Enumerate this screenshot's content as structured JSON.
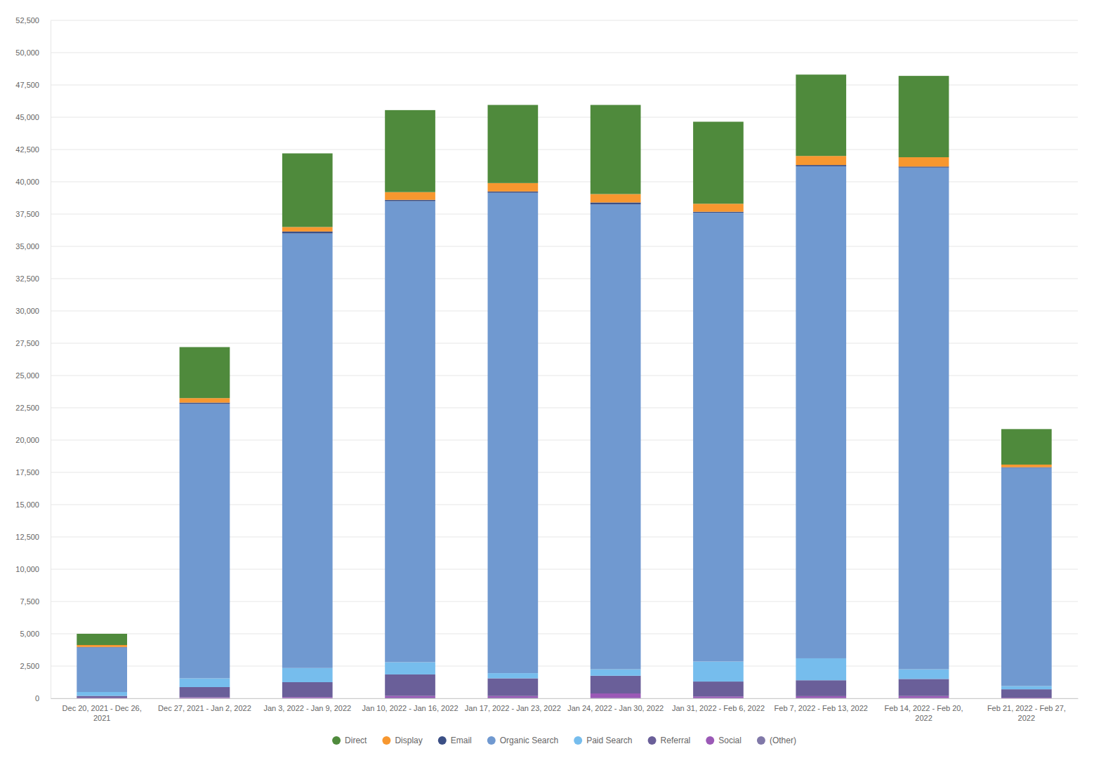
{
  "chart_data": {
    "type": "bar",
    "stacked": true,
    "grid": true,
    "legend": "bottom",
    "categories": [
      "Dec 20, 2021 - Dec 26, 2021",
      "Dec 27, 2021 - Jan 2, 2022",
      "Jan 3, 2022 - Jan 9, 2022",
      "Jan 10, 2022 - Jan 16, 2022",
      "Jan 17, 2022 - Jan 23, 2022",
      "Jan 24, 2022 - Jan 30, 2022",
      "Jan 31, 2022 - Feb 6, 2022",
      "Feb 7, 2022 - Feb 13, 2022",
      "Feb 14, 2022 - Feb 20, 2022",
      "Feb 21, 2022 - Feb 27, 2022"
    ],
    "series": [
      {
        "name": "Direct",
        "color": "#4f8a3c",
        "values": [
          870,
          3950,
          5700,
          6350,
          6050,
          6900,
          6350,
          6300,
          6300,
          2750
        ]
      },
      {
        "name": "Display",
        "color": "#f7972f",
        "values": [
          150,
          350,
          350,
          600,
          650,
          650,
          620,
          700,
          720,
          200
        ]
      },
      {
        "name": "Email",
        "color": "#3b4f85",
        "values": [
          40,
          100,
          150,
          100,
          100,
          150,
          80,
          100,
          80,
          50
        ]
      },
      {
        "name": "Organic Search",
        "color": "#7099d0",
        "values": [
          3450,
          21250,
          33650,
          35700,
          37200,
          36000,
          34750,
          38100,
          38850,
          16900
        ]
      },
      {
        "name": "Paid Search",
        "color": "#76bded",
        "values": [
          300,
          680,
          1100,
          950,
          400,
          500,
          1550,
          1700,
          750,
          250
        ]
      },
      {
        "name": "Referral",
        "color": "#6a5f99",
        "values": [
          150,
          790,
          1150,
          1660,
          1370,
          1370,
          1150,
          1230,
          1320,
          650
        ]
      },
      {
        "name": "Social",
        "color": "#9b59b6",
        "values": [
          30,
          60,
          70,
          150,
          140,
          350,
          120,
          140,
          150,
          40
        ]
      },
      {
        "name": "(Other)",
        "color": "#8078a8",
        "values": [
          10,
          20,
          30,
          40,
          40,
          30,
          30,
          30,
          30,
          10
        ]
      }
    ],
    "ylim": [
      0,
      52500
    ],
    "yticks": [
      0,
      {
        "value": 2500,
        "label": "2,500"
      },
      {
        "value": 5000,
        "label": "5,000"
      },
      {
        "value": 7500,
        "label": "7,500"
      },
      {
        "value": 10000,
        "label": "10,000"
      },
      {
        "value": 12500,
        "label": "12,500"
      },
      {
        "value": 15000,
        "label": "15,000"
      },
      {
        "value": 17500,
        "label": "17,500"
      },
      {
        "value": 20000,
        "label": "20,000"
      },
      {
        "value": 22500,
        "label": "22,500"
      },
      {
        "value": 25000,
        "label": "25,000"
      },
      {
        "value": 27500,
        "label": "27,500"
      },
      {
        "value": 30000,
        "label": "30,000"
      },
      {
        "value": 32500,
        "label": "32,500"
      },
      {
        "value": 35000,
        "label": "35,000"
      },
      {
        "value": 37500,
        "label": "37,500"
      },
      {
        "value": 40000,
        "label": "40,000"
      },
      {
        "value": 42500,
        "label": "42,500"
      },
      {
        "value": 45000,
        "label": "45,000"
      },
      {
        "value": 47500,
        "label": "47,500"
      },
      {
        "value": 50000,
        "label": "50,000"
      },
      {
        "value": 52500,
        "label": "52,500"
      }
    ]
  }
}
